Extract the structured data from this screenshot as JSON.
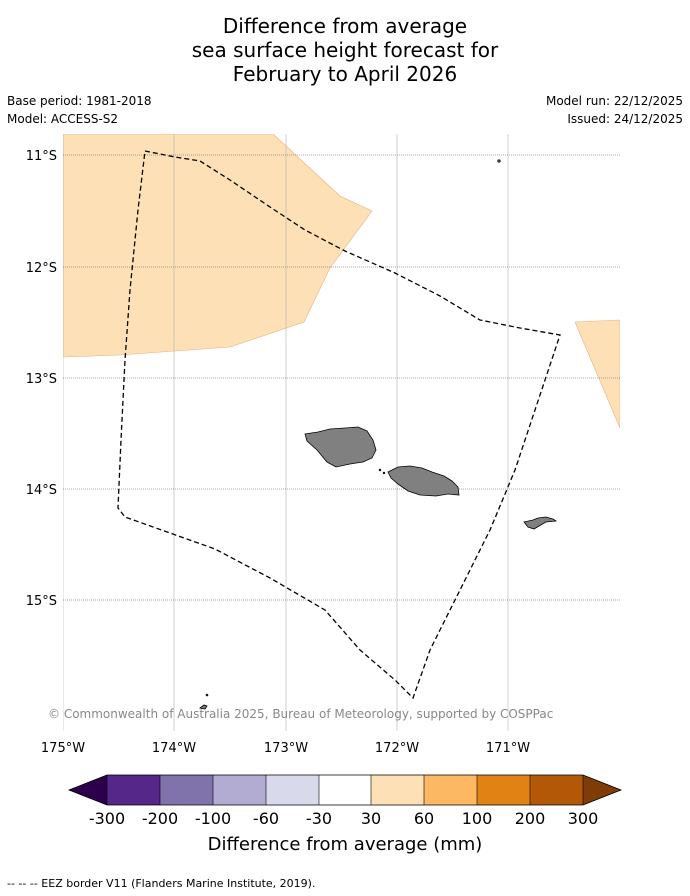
{
  "title": {
    "line1": "Difference from average",
    "line2": "sea surface height forecast for",
    "line3": "February to April 2026"
  },
  "meta": {
    "base_period": "Base period: 1981-2018",
    "model": "Model: ACCESS-S2",
    "model_run": "Model run: 22/12/2025",
    "issued": "Issued: 24/12/2025"
  },
  "map": {
    "lat_labels": [
      "11°S",
      "12°S",
      "13°S",
      "14°S",
      "15°S"
    ],
    "lon_labels": [
      "175°W",
      "174°W",
      "173°W",
      "172°W",
      "171°W"
    ],
    "copyright": "© Commonwealth of Australia 2025, Bureau of Meteorology, supported by COSPPac",
    "colors": {
      "anomaly_30_60": "#fde0b6",
      "land": "#808080",
      "eez_border": "#000000"
    }
  },
  "colorbar": {
    "tick_labels": [
      "-300",
      "-200",
      "-100",
      "-60",
      "-30",
      "30",
      "60",
      "100",
      "200",
      "300"
    ],
    "colors": [
      "#2d004b",
      "#542788",
      "#8073ac",
      "#b2abd2",
      "#d8daeb",
      "#ffffff",
      "#fee0b6",
      "#fdb863",
      "#e08214",
      "#b35806",
      "#7f3b08"
    ],
    "label": "Difference from average (mm)"
  },
  "footer": {
    "legend_text": "--  --  -- EEZ border V11 (Flanders Marine Institute, 2019)."
  }
}
